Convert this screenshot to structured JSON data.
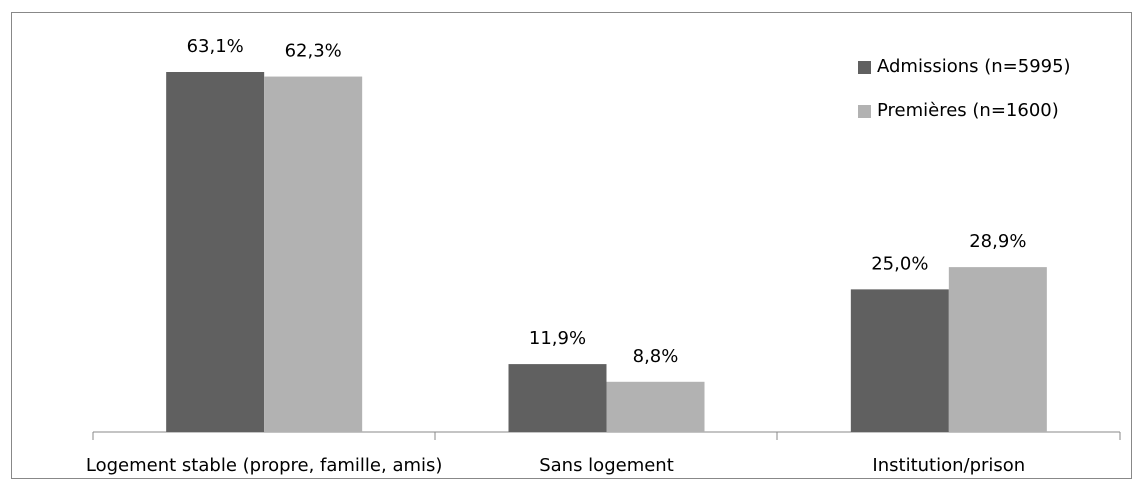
{
  "chart_data": {
    "type": "bar",
    "categories": [
      "Logement stable (propre, famille, amis)",
      "Sans logement",
      "Institution/prison"
    ],
    "series": [
      {
        "name": "Admissions (n=5995)",
        "color": "#606060",
        "values": [
          63.1,
          11.9,
          25.0
        ],
        "value_labels": [
          "63,1%",
          "11,9%",
          "25,0%"
        ]
      },
      {
        "name": "Premières (n=1600)",
        "color": "#b2b2b2",
        "values": [
          62.3,
          8.8,
          28.9
        ],
        "value_labels": [
          "62,3%",
          "8,8%",
          "28,9%"
        ]
      }
    ],
    "legend": "top-right"
  }
}
